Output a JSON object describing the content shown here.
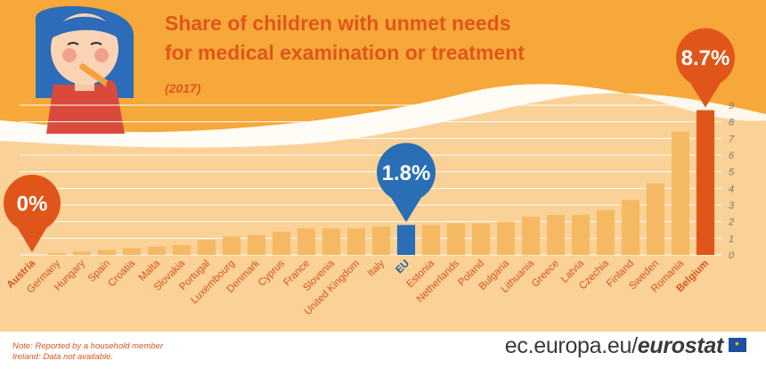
{
  "title_lines": [
    "Share of children with unmet needs",
    "for medical examination or treatment"
  ],
  "subtitle": "(2017)",
  "colors": {
    "background_band": "#fad196",
    "wave_orange": "#f6a83a",
    "bar_default": "#f6b963",
    "bar_eu": "#2a6eb5",
    "bar_highlight": "#e0561a",
    "text_orange": "#e0561a"
  },
  "callouts": {
    "min": {
      "label": "0%",
      "country": "Austria"
    },
    "eu": {
      "label": "1.8%",
      "country": "EU"
    },
    "max": {
      "label": "8.7%",
      "country": "Belgium"
    }
  },
  "chart_data": {
    "type": "bar",
    "categories": [
      "Austria",
      "Germany",
      "Hungary",
      "Spain",
      "Croatia",
      "Malta",
      "Slovakia",
      "Portugal",
      "Luxembourg",
      "Denmark",
      "Cyprus",
      "France",
      "Slovenia",
      "United Kingdom",
      "Italy",
      "EU",
      "Estonia",
      "Netherlands",
      "Poland",
      "Bulgaria",
      "Lithuania",
      "Greece",
      "Latvia",
      "Czechia",
      "Finland",
      "Sweden",
      "Romania",
      "Belgium"
    ],
    "values": [
      0,
      0.1,
      0.2,
      0.3,
      0.4,
      0.5,
      0.6,
      0.9,
      1.1,
      1.2,
      1.4,
      1.6,
      1.6,
      1.6,
      1.7,
      1.8,
      1.8,
      1.9,
      1.9,
      2.0,
      2.3,
      2.4,
      2.4,
      2.7,
      3.3,
      4.3,
      7.4,
      8.7
    ],
    "highlight": [
      "Austria",
      "Belgium"
    ],
    "eu_category": "EU",
    "ylim": [
      0,
      9
    ],
    "yticks": [
      0,
      1,
      2,
      3,
      4,
      5,
      6,
      7,
      8,
      9
    ],
    "y_axis_side": "right",
    "grid": true
  },
  "notes": [
    "Note:  Reported by a household member",
    "Ireland: Data not available."
  ],
  "brand": {
    "plain": "ec.europa.eu/",
    "strong": "eurostat"
  }
}
